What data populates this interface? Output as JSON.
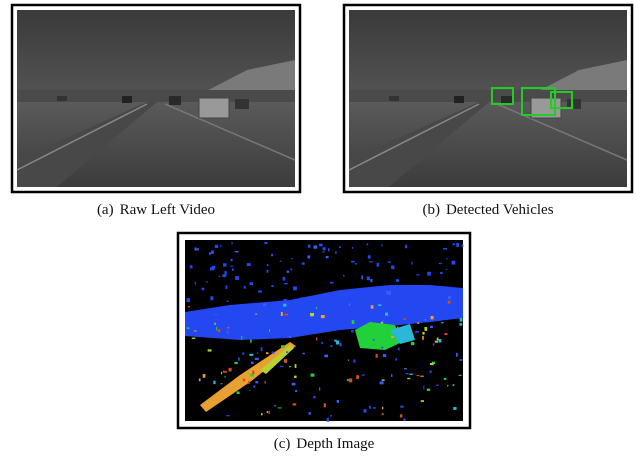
{
  "figure": {
    "panels": [
      {
        "label": "(a)",
        "caption": "Raw Left Video"
      },
      {
        "label": "(b)",
        "caption": "Detected Vehicles"
      },
      {
        "label": "(c)",
        "caption": "Depth Image"
      }
    ]
  }
}
